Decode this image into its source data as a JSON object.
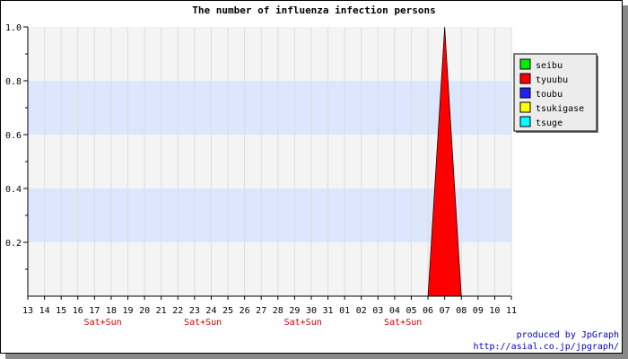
{
  "chart_data": {
    "type": "area",
    "title": "The number of influenza infection persons",
    "x_labels": [
      "13",
      "14",
      "15",
      "16",
      "17",
      "18",
      "19",
      "20",
      "21",
      "22",
      "23",
      "24",
      "25",
      "26",
      "27",
      "28",
      "29",
      "30",
      "31",
      "01",
      "02",
      "03",
      "04",
      "05",
      "06",
      "07",
      "08",
      "09",
      "10",
      "11"
    ],
    "weekend_labels": [
      {
        "after_index": 4,
        "text": "Sat+Sun"
      },
      {
        "after_index": 10,
        "text": "Sat+Sun"
      },
      {
        "after_index": 16,
        "text": "Sat+Sun"
      },
      {
        "after_index": 22,
        "text": "Sat+Sun"
      }
    ],
    "y_ticks": [
      {
        "value": 0.2,
        "label": "0.2"
      },
      {
        "value": 0.4,
        "label": "0.4"
      },
      {
        "value": 0.6,
        "label": "0.6"
      },
      {
        "value": 0.8,
        "label": "0.8"
      },
      {
        "value": 1.0,
        "label": "1.0"
      }
    ],
    "ylim": [
      0,
      1.0
    ],
    "grid": true,
    "legend_position": "right",
    "series": [
      {
        "name": "seibu",
        "color": "#00ee00",
        "values": [
          0,
          0,
          0,
          0,
          0,
          0,
          0,
          0,
          0,
          0,
          0,
          0,
          0,
          0,
          0,
          0,
          0,
          0,
          0,
          0,
          0,
          0,
          0,
          0,
          0,
          0,
          0,
          0,
          0,
          0
        ]
      },
      {
        "name": "tyuubu",
        "color": "#ff0000",
        "values": [
          0,
          0,
          0,
          0,
          0,
          0,
          0,
          0,
          0,
          0,
          0,
          0,
          0,
          0,
          0,
          0,
          0,
          0,
          0,
          0,
          0,
          0,
          0,
          0,
          0,
          1,
          0,
          0,
          0,
          0
        ]
      },
      {
        "name": "toubu",
        "color": "#2222ee",
        "values": [
          0,
          0,
          0,
          0,
          0,
          0,
          0,
          0,
          0,
          0,
          0,
          0,
          0,
          0,
          0,
          0,
          0,
          0,
          0,
          0,
          0,
          0,
          0,
          0,
          0,
          0,
          0,
          0,
          0,
          0
        ]
      },
      {
        "name": "tsukigase",
        "color": "#ffff00",
        "values": [
          0,
          0,
          0,
          0,
          0,
          0,
          0,
          0,
          0,
          0,
          0,
          0,
          0,
          0,
          0,
          0,
          0,
          0,
          0,
          0,
          0,
          0,
          0,
          0,
          0,
          0,
          0,
          0,
          0,
          0
        ]
      },
      {
        "name": "tsuge",
        "color": "#00ffff",
        "values": [
          0,
          0,
          0,
          0,
          0,
          0,
          0,
          0,
          0,
          0,
          0,
          0,
          0,
          0,
          0,
          0,
          0,
          0,
          0,
          0,
          0,
          0,
          0,
          0,
          0,
          0,
          0,
          0,
          0,
          0
        ]
      }
    ],
    "colors": {
      "plot_bg": "#f4f4f4",
      "band": "#dce6fc",
      "grid": "#dddddd"
    }
  },
  "credits": {
    "line1": "produced by JpGraph",
    "line2": "http://asial.co.jp/jpgraph/"
  }
}
